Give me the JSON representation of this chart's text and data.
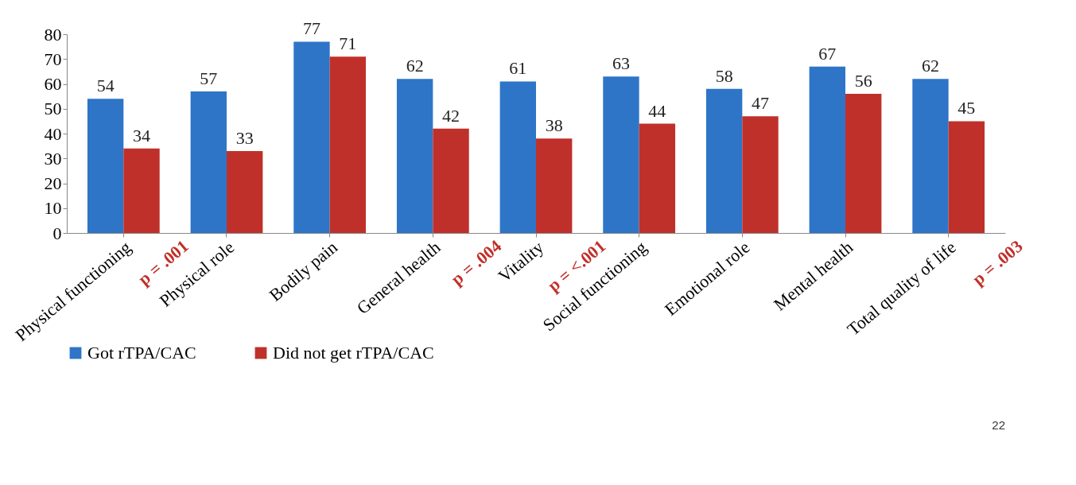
{
  "chart_data": {
    "type": "bar",
    "categories": [
      "Physical functioning",
      "Physical role",
      "Bodily pain",
      "General health",
      "Vitality",
      "Social functioning",
      "Emotional role",
      "Mental health",
      "Total quality of life"
    ],
    "series": [
      {
        "name": "Got rTPA/CAC",
        "color": "#2e75c8",
        "values": [
          54,
          57,
          77,
          62,
          61,
          63,
          58,
          67,
          62
        ]
      },
      {
        "name": "Did not get rTPA/CAC",
        "color": "#c0302a",
        "values": [
          34,
          33,
          71,
          42,
          38,
          44,
          47,
          56,
          45
        ]
      }
    ],
    "ylim": [
      0,
      80
    ],
    "yticks": [
      0,
      10,
      20,
      30,
      40,
      50,
      60,
      70,
      80
    ],
    "grid": false,
    "legend": "bottom",
    "data_labels": true,
    "annotations": [
      "p = .001",
      "p = .004",
      "p = <.001",
      "p = .003",
      "22"
    ]
  }
}
